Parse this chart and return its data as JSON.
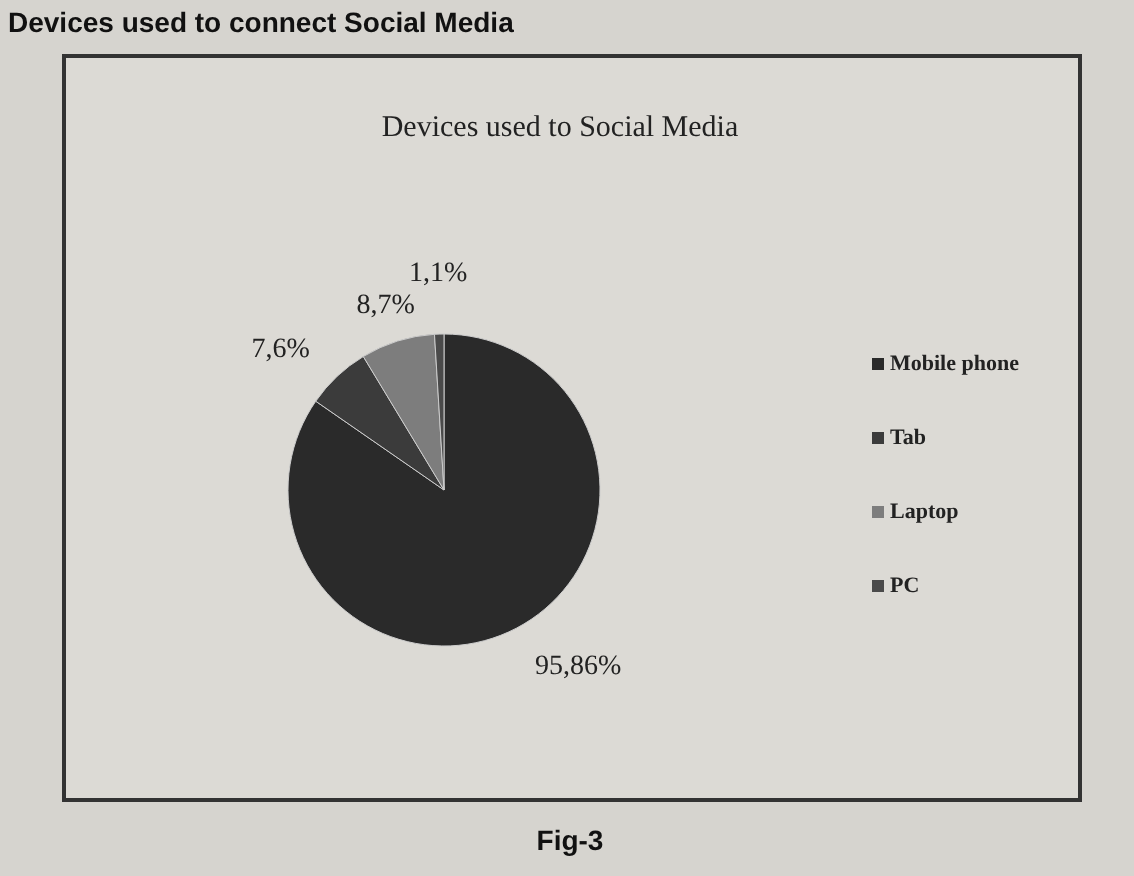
{
  "chart_data": {
    "type": "pie",
    "title": "Devices used to Social Media",
    "categories": [
      "Mobile phone",
      "Tab",
      "Laptop",
      "PC"
    ],
    "values": [
      95.86,
      7.6,
      8.7,
      1.1
    ],
    "value_labels": [
      "95,86%",
      "7,6%",
      "8,7%",
      "1,1%"
    ],
    "colors": [
      "#2a2a2a",
      "#3b3b3b",
      "#7d7d7d",
      "#4a4a4a"
    ],
    "legend": "right",
    "annotations": [
      "Devices used to connect Social Media",
      "Fig-3"
    ]
  }
}
